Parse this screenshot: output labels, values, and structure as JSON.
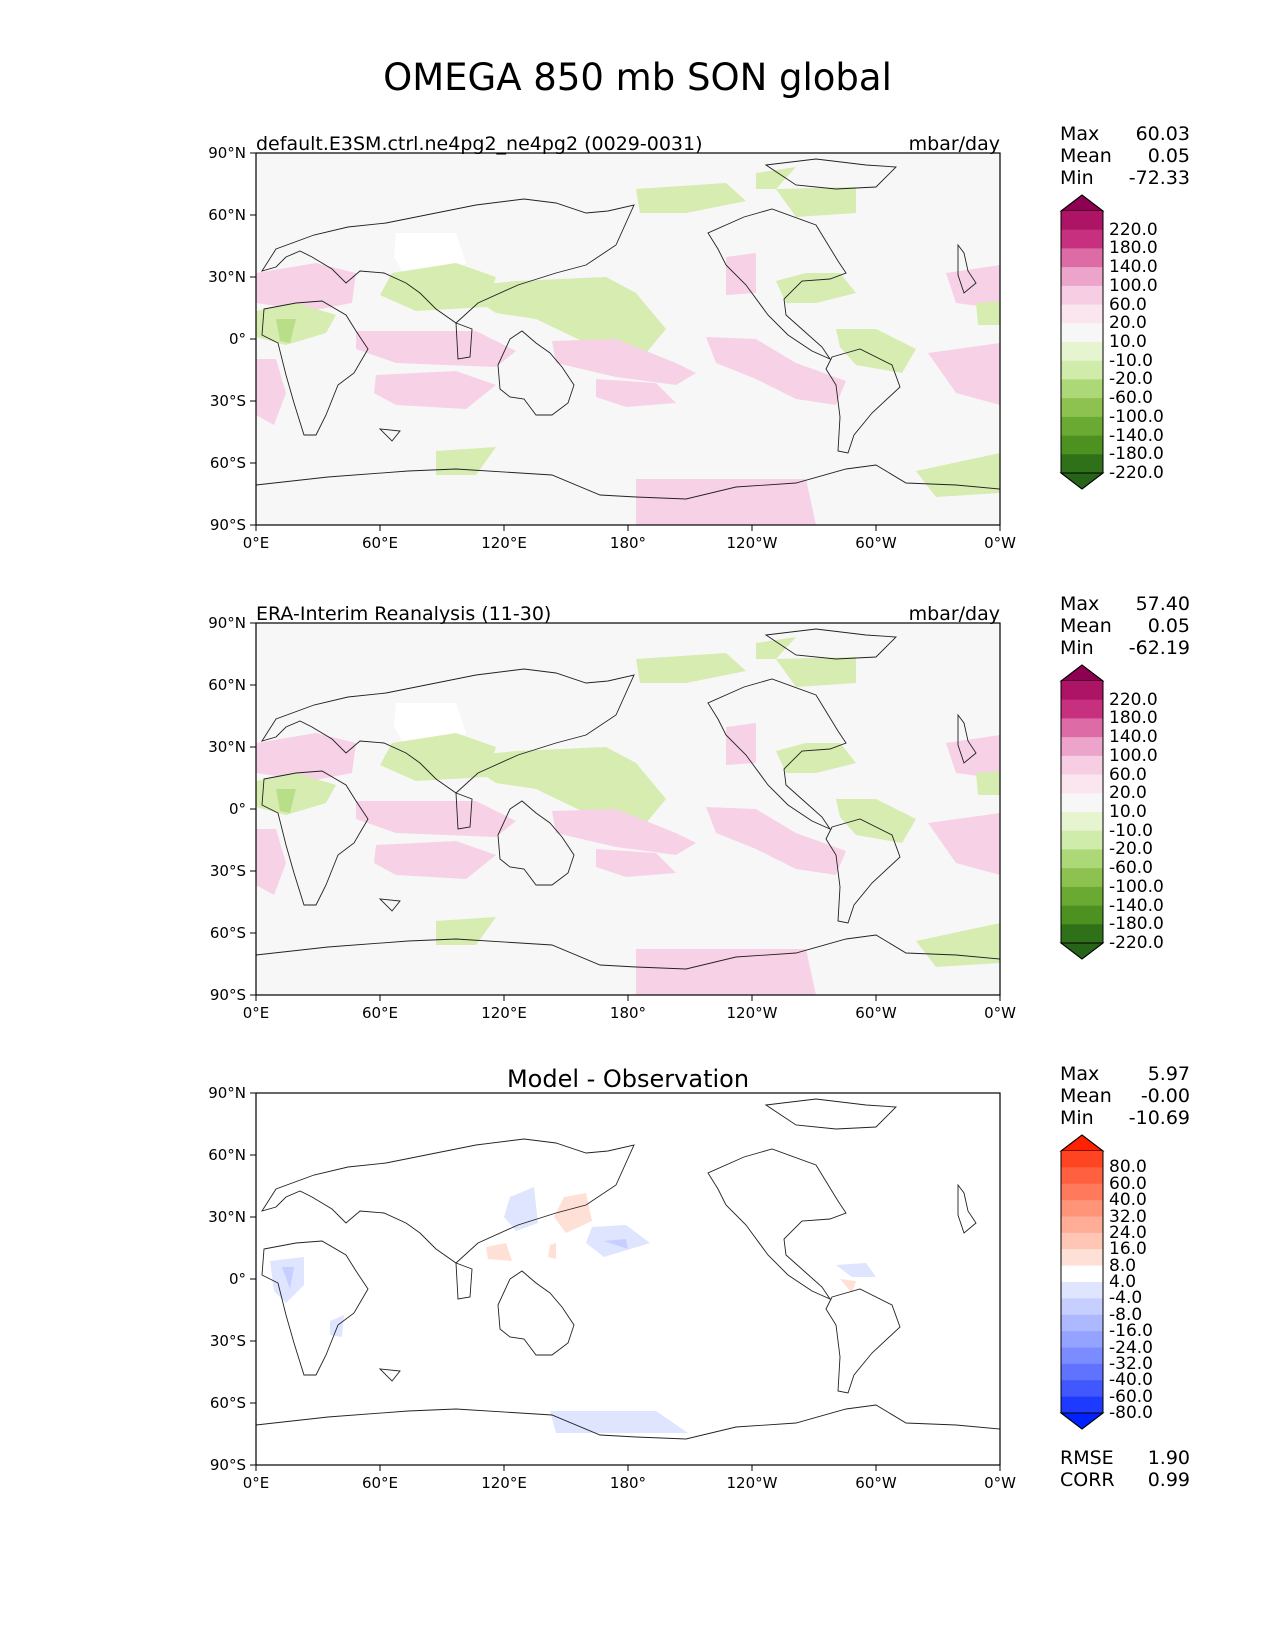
{
  "title": "OMEGA 850 mb SON global",
  "lat_ticks": [
    "90°N",
    "60°N",
    "30°N",
    "0°",
    "30°S",
    "60°S",
    "90°S"
  ],
  "lon_ticks": [
    "0°E",
    "60°E",
    "120°E",
    "180°",
    "120°W",
    "60°W",
    "0°W"
  ],
  "panels": [
    {
      "title_left": "default.E3SM.ctrl.ne4pg2_ne4pg2 (0029-0031)",
      "title_right": "mbar/day",
      "stats": [
        {
          "label": "Max",
          "value": "60.03"
        },
        {
          "label": "Mean",
          "value": "0.05"
        },
        {
          "label": "Min",
          "value": "-72.33"
        }
      ],
      "colorbar": {
        "labels": [
          "220.0",
          "180.0",
          "140.0",
          "100.0",
          "60.0",
          "20.0",
          "10.0",
          "-10.0",
          "-20.0",
          "-60.0",
          "-100.0",
          "-140.0",
          "-180.0",
          "-220.0"
        ],
        "colors": [
          "#8e0152",
          "#ad1466",
          "#c7307f",
          "#dd6ca6",
          "#eca4cb",
          "#f7cde4",
          "#fbe6f0",
          "#f7f7f7",
          "#e6f4d0",
          "#d0ecaa",
          "#acd878",
          "#8dc250",
          "#6aaa33",
          "#4d9221",
          "#2e7119",
          "#276419"
        ]
      }
    },
    {
      "title_left": "ERA-Interim Reanalysis (11-30)",
      "title_right": "mbar/day",
      "stats": [
        {
          "label": "Max",
          "value": "57.40"
        },
        {
          "label": "Mean",
          "value": "0.05"
        },
        {
          "label": "Min",
          "value": "-62.19"
        }
      ],
      "colorbar": {
        "labels": [
          "220.0",
          "180.0",
          "140.0",
          "100.0",
          "60.0",
          "20.0",
          "10.0",
          "-10.0",
          "-20.0",
          "-60.0",
          "-100.0",
          "-140.0",
          "-180.0",
          "-220.0"
        ],
        "colors": [
          "#8e0152",
          "#ad1466",
          "#c7307f",
          "#dd6ca6",
          "#eca4cb",
          "#f7cde4",
          "#fbe6f0",
          "#f7f7f7",
          "#e6f4d0",
          "#d0ecaa",
          "#acd878",
          "#8dc250",
          "#6aaa33",
          "#4d9221",
          "#2e7119",
          "#276419"
        ]
      }
    },
    {
      "title_center": "Model - Observation",
      "stats": [
        {
          "label": "Max",
          "value": "5.97"
        },
        {
          "label": "Mean",
          "value": "-0.00"
        },
        {
          "label": "Min",
          "value": "-10.69"
        }
      ],
      "bottom_stats": [
        {
          "label": "RMSE",
          "value": "1.90"
        },
        {
          "label": "CORR",
          "value": "0.99"
        }
      ],
      "colorbar": {
        "labels": [
          "80.0",
          "60.0",
          "40.0",
          "32.0",
          "24.0",
          "16.0",
          "8.0",
          "4.0",
          "-4.0",
          "-8.0",
          "-16.0",
          "-24.0",
          "-32.0",
          "-40.0",
          "-60.0",
          "-80.0"
        ],
        "colors": [
          "#ff2200",
          "#ff4422",
          "#ff6040",
          "#ff7a5c",
          "#ff9478",
          "#ffad96",
          "#ffc6b6",
          "#ffe0d6",
          "#ffffff",
          "#dfe4ff",
          "#c6cfff",
          "#adb9ff",
          "#94a3ff",
          "#7a8cff",
          "#5f73ff",
          "#4258ff",
          "#1e3aff",
          "#0022ff"
        ]
      }
    }
  ]
}
